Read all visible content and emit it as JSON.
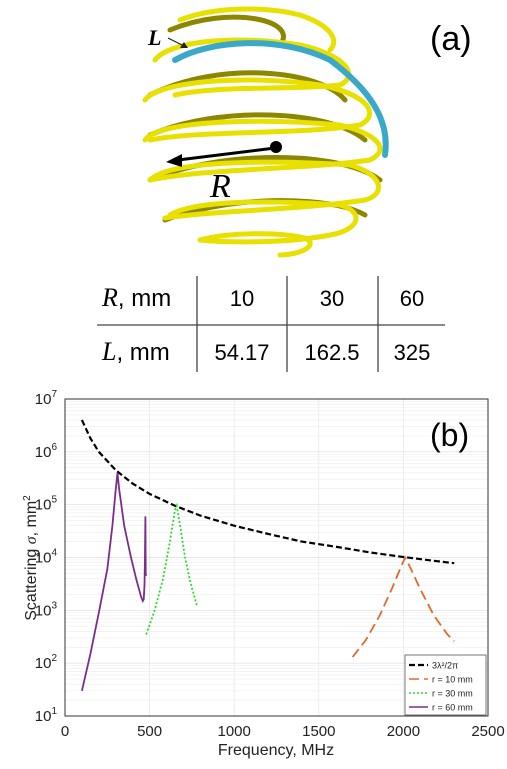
{
  "panel_a": {
    "label": "(a)",
    "length_symbol": "L",
    "radius_symbol": "R",
    "table": {
      "rows": [
        {
          "symbol": "R",
          "unit": ", mm",
          "values": [
            "10",
            "30",
            "60"
          ]
        },
        {
          "symbol": "L",
          "unit": ", mm",
          "values": [
            "54.17",
            "162.5",
            "325"
          ]
        }
      ]
    },
    "colors": {
      "helix": "#e8e000",
      "highlight": "#3aa8c8"
    }
  },
  "chart_data": {
    "type": "line",
    "panel_label": "(b)",
    "xlabel": "Frequency, MHz",
    "ylabel_prefix": "Scattering ",
    "ylabel_symbol": "σ",
    "ylabel_unit": ", mm",
    "ylabel_unit_sup": "2",
    "xlim": [
      0,
      2500
    ],
    "ylim": [
      10,
      10000000
    ],
    "yscale": "log",
    "grid": true,
    "x_ticks": [
      "0",
      "500",
      "1000",
      "1500",
      "2000",
      "2500"
    ],
    "y_ticks": [
      {
        "base": "10",
        "exp": "1"
      },
      {
        "base": "10",
        "exp": "2"
      },
      {
        "base": "10",
        "exp": "3"
      },
      {
        "base": "10",
        "exp": "4"
      },
      {
        "base": "10",
        "exp": "5"
      },
      {
        "base": "10",
        "exp": "6"
      },
      {
        "base": "10",
        "exp": "7"
      }
    ],
    "legend_position": "bottom-right",
    "series": [
      {
        "name": "3λ²/2π",
        "color": "#000000",
        "dash": "black",
        "points": [
          [
            100,
            4000000
          ],
          [
            150,
            1800000
          ],
          [
            200,
            1000000
          ],
          [
            300,
            450000
          ],
          [
            400,
            250000
          ],
          [
            500,
            160000
          ],
          [
            650,
            95000
          ],
          [
            800,
            62000
          ],
          [
            1000,
            40000
          ],
          [
            1200,
            28000
          ],
          [
            1400,
            20000
          ],
          [
            1600,
            16000
          ],
          [
            1800,
            12500
          ],
          [
            2000,
            10200
          ],
          [
            2200,
            8500
          ],
          [
            2300,
            7800
          ]
        ]
      },
      {
        "name": "r = 10 mm",
        "color": "#e06a2c",
        "dash": "long",
        "points": [
          [
            1700,
            130
          ],
          [
            1780,
            280
          ],
          [
            1860,
            800
          ],
          [
            1930,
            2500
          ],
          [
            1980,
            6000
          ],
          [
            2010,
            10000
          ],
          [
            2040,
            6500
          ],
          [
            2100,
            2500
          ],
          [
            2180,
            800
          ],
          [
            2260,
            350
          ],
          [
            2300,
            260
          ]
        ]
      },
      {
        "name": "r = 30 mm",
        "color": "#2ed82e",
        "dash": "dot",
        "points": [
          [
            480,
            350
          ],
          [
            530,
            1000
          ],
          [
            580,
            4000
          ],
          [
            620,
            20000
          ],
          [
            650,
            80000
          ],
          [
            660,
            95000
          ],
          [
            680,
            40000
          ],
          [
            710,
            10000
          ],
          [
            740,
            3500
          ],
          [
            780,
            1200
          ]
        ]
      },
      {
        "name": "r = 60 mm",
        "color": "#7b2d8e",
        "dash": "solid",
        "points": [
          [
            100,
            30
          ],
          [
            150,
            150
          ],
          [
            200,
            900
          ],
          [
            250,
            6000
          ],
          [
            280,
            40000
          ],
          [
            300,
            200000
          ],
          [
            310,
            400000
          ],
          [
            320,
            200000
          ],
          [
            350,
            40000
          ],
          [
            390,
            10000
          ],
          [
            420,
            4000
          ],
          [
            450,
            1800
          ],
          [
            460,
            1500
          ],
          [
            465,
            1600
          ],
          [
            470,
            3000
          ],
          [
            472,
            8000
          ],
          [
            475,
            60000
          ],
          [
            477,
            5000
          ],
          [
            480,
            4500
          ]
        ]
      }
    ]
  }
}
